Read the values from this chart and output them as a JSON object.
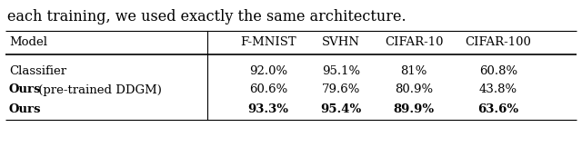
{
  "header": [
    "Model",
    "F-MNIST",
    "SVHN",
    "CIFAR-10",
    "CIFAR-100"
  ],
  "rows": [
    {
      "model": "Classifier",
      "model_bold": false,
      "model_bold_prefix": "",
      "model_regular_suffix": "Classifier",
      "values": [
        "92.0%",
        "95.1%",
        "81%",
        "60.8%"
      ],
      "values_bold": false
    },
    {
      "model": "Ours (pre-trained DDGM)",
      "model_bold": false,
      "model_bold_prefix": "Ours",
      "model_regular_suffix": " (pre-trained DDGM)",
      "values": [
        "60.6%",
        "79.6%",
        "80.9%",
        "43.8%"
      ],
      "values_bold": false
    },
    {
      "model": "Ours",
      "model_bold": true,
      "model_bold_prefix": "Ours",
      "model_regular_suffix": "",
      "values": [
        "93.3%",
        "95.4%",
        "89.9%",
        "63.6%"
      ],
      "values_bold": true
    }
  ],
  "title_text": "each training, we used exactly the same architecture.",
  "figsize": [
    6.4,
    1.62
  ],
  "dpi": 100,
  "background_color": "#ffffff",
  "text_color": "#000000",
  "header_fontsize": 9.5,
  "row_fontsize": 9.5,
  "title_fontsize": 11.5
}
